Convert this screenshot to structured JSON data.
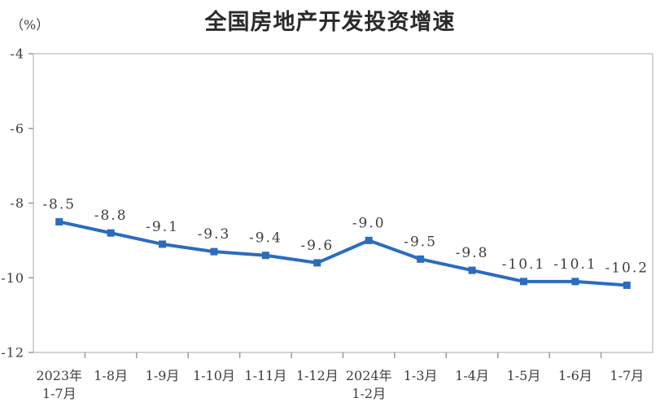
{
  "chart_data": {
    "type": "line",
    "title": "全国房地产开发投资增速",
    "unit_label": "（%）",
    "categories": [
      "2023年\n1-7月",
      "1-8月",
      "1-9月",
      "1-10月",
      "1-11月",
      "1-12月",
      "2024年\n1-2月",
      "1-3月",
      "1-4月",
      "1-5月",
      "1-6月",
      "1-7月"
    ],
    "series": [
      {
        "name": "全国房地产开发投资增速",
        "values": [
          -8.5,
          -8.8,
          -9.1,
          -9.3,
          -9.4,
          -9.6,
          -9.0,
          -9.5,
          -9.8,
          -10.1,
          -10.1,
          -10.2
        ]
      }
    ],
    "ylim": [
      -12,
      -4
    ],
    "yticks": [
      -4,
      -6,
      -8,
      -10,
      -12
    ],
    "grid": false,
    "legend_position": "none",
    "marker_shape": "square",
    "colors": {
      "line": "#2b6cbe",
      "marker": "#2b6cbe",
      "plot_border": "#c6c6c6",
      "tick": "#9a9a9a",
      "label_text": "#3d3d3d",
      "title_text": "#2a2a2a"
    }
  }
}
